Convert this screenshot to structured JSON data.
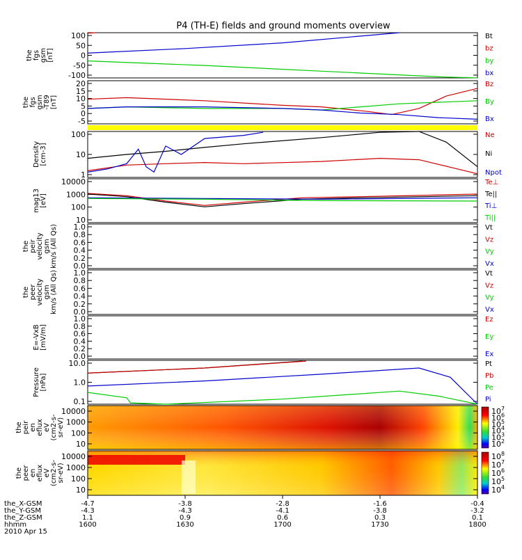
{
  "title": "P4 (TH-E) fields and ground moments overview",
  "colors": {
    "black": "#000000",
    "red": "#cc0000",
    "green": "#00cc00",
    "blue": "#0000cc",
    "yellow": "#ffff00"
  },
  "chart_data": [
    {
      "type": "line",
      "id": "fgs",
      "ylabel_lines": [
        "the",
        "fgs",
        "gsm",
        "[nT]"
      ],
      "yticks": [
        "100",
        "50",
        "0",
        "-50",
        "-100"
      ],
      "ylim": [
        -100,
        100
      ],
      "legend": [
        {
          "label": "Bt",
          "color": "black"
        },
        {
          "label": "bz",
          "color": "red"
        },
        {
          "label": "by",
          "color": "green"
        },
        {
          "label": "bx",
          "color": "blue"
        }
      ],
      "series": [
        {
          "name": "bx",
          "color": "blue",
          "x": [
            0,
            0.25,
            0.5,
            0.7,
            0.8
          ],
          "y": [
            10,
            30,
            55,
            85,
            100
          ]
        },
        {
          "name": "by",
          "color": "green",
          "x": [
            0,
            0.3,
            0.6,
            0.9,
            1.0
          ],
          "y": [
            -25,
            -45,
            -70,
            -95,
            -100
          ]
        },
        {
          "name": "bz",
          "color": "red",
          "x": [
            0,
            0.02
          ],
          "y": [
            98,
            100
          ]
        }
      ]
    },
    {
      "type": "line",
      "id": "fgs_t89",
      "ylabel_lines": [
        "the",
        "fgs",
        "gsm",
        "-T89",
        "[nT]"
      ],
      "yticks": [
        "20",
        "15",
        "10",
        "5",
        "0",
        "-5"
      ],
      "ylim": [
        -8,
        20
      ],
      "legend": [
        {
          "label": "Bz",
          "color": "red"
        },
        {
          "label": "By",
          "color": "green"
        },
        {
          "label": "Bx",
          "color": "blue"
        }
      ],
      "series": [
        {
          "name": "Bz",
          "color": "red",
          "x": [
            0,
            0.1,
            0.3,
            0.5,
            0.6,
            0.72,
            0.78,
            0.85,
            0.92,
            1.0
          ],
          "y": [
            8,
            9,
            7,
            4,
            3,
            0,
            -2,
            2,
            10,
            15
          ]
        },
        {
          "name": "By",
          "color": "green",
          "x": [
            0,
            0.1,
            0.3,
            0.5,
            0.6,
            0.7,
            0.8,
            0.9,
            1.0
          ],
          "y": [
            2,
            3,
            2,
            2,
            1,
            3,
            5,
            6,
            7
          ]
        },
        {
          "name": "Bx",
          "color": "blue",
          "x": [
            0,
            0.1,
            0.3,
            0.5,
            0.6,
            0.7,
            0.8,
            0.9,
            1.0
          ],
          "y": [
            2,
            3,
            3,
            2,
            1,
            -1,
            -2,
            -4,
            -5
          ]
        }
      ]
    },
    {
      "type": "line",
      "id": "density",
      "ylabel_lines": [
        "Density",
        "[cm-3]"
      ],
      "yticks": [
        "100",
        "10",
        "1"
      ],
      "ylog": true,
      "ylim": [
        0.5,
        200
      ],
      "legend": [
        {
          "label": "Ne",
          "color": "red"
        },
        {
          "label": "Ni",
          "color": "black"
        },
        {
          "label": "Npot",
          "color": "blue"
        }
      ],
      "series": [
        {
          "name": "Ne",
          "color": "red",
          "x": [
            0,
            0.1,
            0.2,
            0.3,
            0.4,
            0.6,
            0.75,
            0.85,
            1.0
          ],
          "y": [
            1.2,
            2.5,
            3,
            3.5,
            3,
            4,
            6,
            5,
            0.8
          ]
        },
        {
          "name": "Ni",
          "color": "black",
          "x": [
            0,
            0.1,
            0.2,
            0.3,
            0.4,
            0.6,
            0.75,
            0.85,
            0.92,
            1.0
          ],
          "y": [
            6,
            10,
            15,
            25,
            40,
            90,
            180,
            200,
            50,
            2
          ]
        },
        {
          "name": "Npot",
          "color": "blue",
          "x": [
            0,
            0.05,
            0.1,
            0.13,
            0.15,
            0.17,
            0.2,
            0.24,
            0.3,
            0.4,
            0.45
          ],
          "y": [
            1,
            1.5,
            3,
            20,
            2,
            1,
            30,
            10,
            80,
            120,
            180
          ]
        }
      ]
    },
    {
      "type": "line",
      "id": "mag",
      "ylabel_lines": [
        "mag13",
        "[eV]"
      ],
      "yticks": [
        "10000",
        "1000",
        "100",
        "10"
      ],
      "ylog": true,
      "ylim": [
        10,
        10000
      ],
      "legend": [
        {
          "label": "Te⊥",
          "color": "red"
        },
        {
          "label": "Te||",
          "color": "black"
        },
        {
          "label": "Ti⊥",
          "color": "blue"
        },
        {
          "label": "Ti||",
          "color": "green"
        }
      ],
      "series": [
        {
          "name": "Te⊥",
          "color": "red",
          "x": [
            0,
            0.1,
            0.2,
            0.3,
            0.4,
            0.55,
            0.7,
            1.0
          ],
          "y": [
            1000,
            700,
            300,
            150,
            250,
            500,
            600,
            900
          ]
        },
        {
          "name": "Te||",
          "color": "black",
          "x": [
            0,
            0.1,
            0.2,
            0.3,
            0.4,
            0.55,
            0.7,
            1.0
          ],
          "y": [
            900,
            600,
            250,
            120,
            200,
            400,
            500,
            700
          ]
        },
        {
          "name": "Ti⊥",
          "color": "blue",
          "x": [
            0,
            0.3,
            0.6,
            1.0
          ],
          "y": [
            500,
            450,
            400,
            500
          ]
        },
        {
          "name": "Ti||",
          "color": "green",
          "x": [
            0,
            0.3,
            0.6,
            1.0
          ],
          "y": [
            450,
            400,
            320,
            300
          ]
        }
      ]
    },
    {
      "type": "line",
      "id": "peir_vel",
      "ylabel_lines": [
        "the",
        "peir",
        "velocity",
        "gsm",
        "km/s (All Qs)"
      ],
      "yticks": [
        "1.0",
        "0.8",
        "0.6",
        "0.4",
        "0.2",
        "0.0"
      ],
      "ylim": [
        0,
        1
      ],
      "legend": [
        {
          "label": "Vt",
          "color": "black"
        },
        {
          "label": "Vz",
          "color": "red"
        },
        {
          "label": "Vy",
          "color": "green"
        },
        {
          "label": "Vx",
          "color": "blue"
        }
      ],
      "series": []
    },
    {
      "type": "line",
      "id": "peer_vel",
      "ylabel_lines": [
        "the",
        "peer",
        "velocity",
        "gsm",
        "km/s (All Qs)"
      ],
      "yticks": [
        "1.0",
        "0.8",
        "0.6",
        "0.4",
        "0.2",
        "0.0"
      ],
      "ylim": [
        0,
        1
      ],
      "legend": [
        {
          "label": "Vt",
          "color": "black"
        },
        {
          "label": "Vz",
          "color": "red"
        },
        {
          "label": "Vy",
          "color": "green"
        },
        {
          "label": "Vx",
          "color": "blue"
        }
      ],
      "series": []
    },
    {
      "type": "line",
      "id": "efield",
      "ylabel_lines": [
        "E=-VxB",
        "[mV/m]"
      ],
      "yticks": [
        "1.0",
        "0.8",
        "0.6",
        "0.4",
        "0.2",
        "0.0"
      ],
      "ylim": [
        0,
        1
      ],
      "legend": [
        {
          "label": "Ez",
          "color": "red"
        },
        {
          "label": "Ey",
          "color": "green"
        },
        {
          "label": "Ex",
          "color": "blue"
        }
      ],
      "series": []
    },
    {
      "type": "line",
      "id": "pressure",
      "ylabel_lines": [
        "Pressure",
        "[nPa]"
      ],
      "yticks": [
        "10.0",
        "1.0",
        "0.1"
      ],
      "ylog": true,
      "ylim": [
        0.05,
        20
      ],
      "legend": [
        {
          "label": "Pt",
          "color": "black"
        },
        {
          "label": "Pb",
          "color": "red"
        },
        {
          "label": "Pe",
          "color": "green"
        },
        {
          "label": "Pi",
          "color": "blue"
        }
      ],
      "series": [
        {
          "name": "Pt",
          "color": "black",
          "x": [
            0,
            0.3,
            0.55
          ],
          "y": [
            3.5,
            7,
            18
          ]
        },
        {
          "name": "Pb",
          "color": "red",
          "x": [
            0,
            0.3,
            0.56
          ],
          "y": [
            3.5,
            7,
            18
          ]
        },
        {
          "name": "Pi",
          "color": "blue",
          "x": [
            0,
            0.3,
            0.6,
            0.85,
            0.93,
            1.0
          ],
          "y": [
            0.6,
            1.2,
            3,
            7,
            2,
            0.05
          ]
        },
        {
          "name": "Pe",
          "color": "green",
          "x": [
            0,
            0.1,
            0.11,
            0.2,
            0.5,
            0.8,
            0.9,
            1.0
          ],
          "y": [
            0.25,
            0.12,
            0.06,
            0.05,
            0.1,
            0.3,
            0.15,
            0.03
          ]
        }
      ]
    },
    {
      "type": "heatmap",
      "id": "peir_en",
      "ylabel_lines": [
        "the",
        "peir",
        "en",
        "eflux",
        "eV",
        "(cm2-s-",
        "sr-eV)"
      ],
      "yticks": [
        "10000",
        "1000",
        "100",
        "10"
      ],
      "colorbar_ticks": [
        "10^7",
        "10^6",
        "10^5",
        "10^4",
        "10^3",
        "10^2"
      ]
    },
    {
      "type": "heatmap",
      "id": "peer_en",
      "ylabel_lines": [
        "the",
        "peer",
        "en",
        "eflux",
        "eV",
        "(cm2-s-",
        "sr-eV)"
      ],
      "yticks": [
        "10000",
        "1000",
        "100",
        "10"
      ],
      "colorbar_ticks": [
        "10^8",
        "10^7",
        "10^6",
        "10^5",
        "10^4"
      ]
    }
  ],
  "bottom_axis": {
    "rows": [
      {
        "label": "the_X-GSM",
        "values": [
          "-4.7",
          "-3.8",
          "-2.8",
          "-1.6",
          "-0.4"
        ]
      },
      {
        "label": "the_Y-GSM",
        "values": [
          "-4.3",
          "-4.3",
          "-4.1",
          "-3.8",
          "-3.2"
        ]
      },
      {
        "label": "the_Z-GSM",
        "values": [
          "1.1",
          "0.9",
          "0.6",
          "0.3",
          "0.1"
        ]
      },
      {
        "label": "hhmm",
        "values": [
          "1600",
          "1630",
          "1700",
          "1730",
          "1800"
        ]
      }
    ],
    "date": "2010 Apr 15"
  }
}
